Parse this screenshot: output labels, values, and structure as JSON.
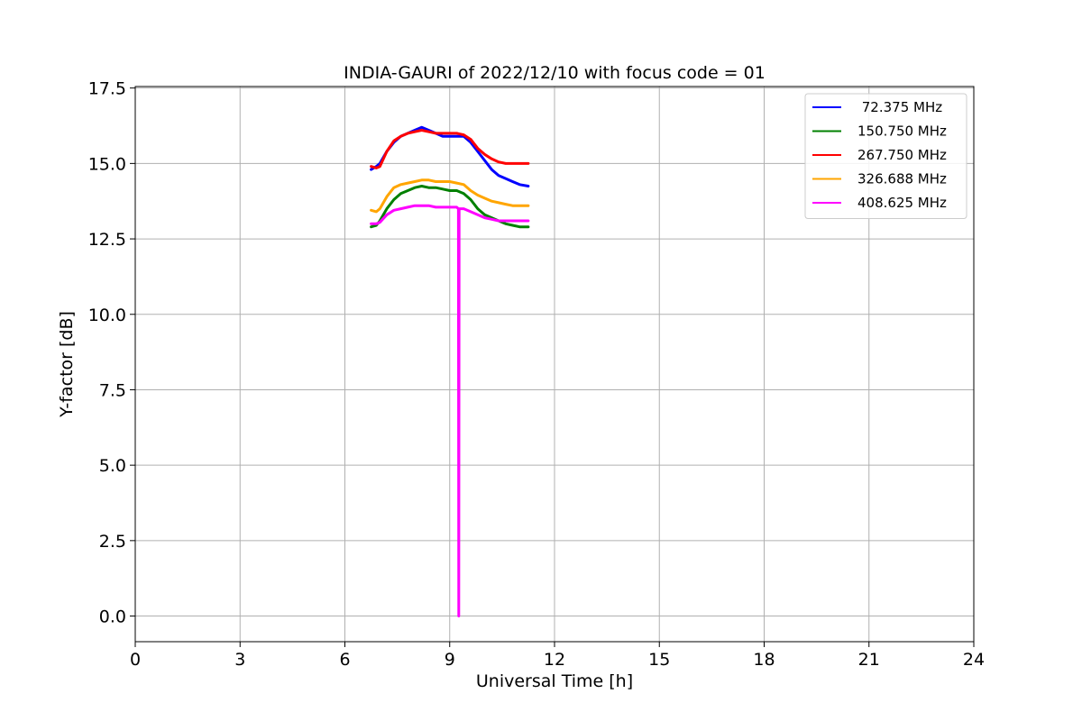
{
  "chart_data": {
    "type": "line",
    "title": "INDIA-GAURI of 2022/12/10 with focus code = 01",
    "xlabel": "Universal Time [h]",
    "ylabel": "Y-factor [dB]",
    "xlim": [
      0,
      24
    ],
    "ylim": [
      -0.85,
      17.55
    ],
    "xticks": [
      0,
      3,
      6,
      9,
      12,
      15,
      18,
      21,
      24
    ],
    "xtick_labels": [
      "0",
      "3",
      "6",
      "9",
      "12",
      "15",
      "18",
      "21",
      "24"
    ],
    "yticks": [
      0.0,
      2.5,
      5.0,
      7.5,
      10.0,
      12.5,
      15.0,
      17.5
    ],
    "ytick_labels": [
      "0.0",
      "2.5",
      "5.0",
      "7.5",
      "10.0",
      "12.5",
      "15.0",
      "17.5"
    ],
    "grid": true,
    "legend_position": "top-right",
    "series": [
      {
        "name": " 72.375 MHz",
        "color": "#0000ff",
        "x": [
          6.75,
          6.9,
          7.0,
          7.2,
          7.4,
          7.6,
          7.8,
          8.0,
          8.2,
          8.4,
          8.6,
          8.8,
          9.0,
          9.2,
          9.4,
          9.6,
          9.8,
          10.0,
          10.2,
          10.4,
          10.6,
          10.8,
          11.0,
          11.25
        ],
        "y": [
          14.8,
          14.9,
          15.0,
          15.4,
          15.7,
          15.9,
          16.0,
          16.1,
          16.2,
          16.1,
          16.0,
          15.9,
          15.9,
          15.9,
          15.9,
          15.7,
          15.4,
          15.1,
          14.8,
          14.6,
          14.5,
          14.4,
          14.3,
          14.25
        ]
      },
      {
        "name": "150.750 MHz",
        "color": "#008000",
        "x": [
          6.75,
          6.9,
          7.0,
          7.2,
          7.4,
          7.6,
          7.8,
          8.0,
          8.2,
          8.4,
          8.6,
          8.8,
          9.0,
          9.2,
          9.4,
          9.6,
          9.8,
          10.0,
          10.2,
          10.4,
          10.6,
          10.8,
          11.0,
          11.25
        ],
        "y": [
          12.9,
          12.95,
          13.1,
          13.5,
          13.8,
          14.0,
          14.1,
          14.2,
          14.25,
          14.2,
          14.2,
          14.15,
          14.1,
          14.1,
          14.0,
          13.8,
          13.5,
          13.3,
          13.2,
          13.1,
          13.0,
          12.95,
          12.9,
          12.9
        ]
      },
      {
        "name": "267.750 MHz",
        "color": "#ff0000",
        "x": [
          6.75,
          6.9,
          7.0,
          7.2,
          7.4,
          7.6,
          7.8,
          8.0,
          8.2,
          8.4,
          8.6,
          8.8,
          9.0,
          9.2,
          9.4,
          9.6,
          9.8,
          10.0,
          10.2,
          10.4,
          10.6,
          10.8,
          11.0,
          11.25
        ],
        "y": [
          14.9,
          14.85,
          14.9,
          15.4,
          15.75,
          15.9,
          16.0,
          16.05,
          16.1,
          16.05,
          16.0,
          16.0,
          16.0,
          16.0,
          15.95,
          15.8,
          15.5,
          15.3,
          15.15,
          15.05,
          15.0,
          15.0,
          15.0,
          15.0
        ]
      },
      {
        "name": "326.688 MHz",
        "color": "#ffa500",
        "x": [
          6.75,
          6.9,
          7.0,
          7.2,
          7.4,
          7.6,
          7.8,
          8.0,
          8.2,
          8.4,
          8.6,
          8.8,
          9.0,
          9.2,
          9.4,
          9.6,
          9.8,
          10.0,
          10.2,
          10.4,
          10.6,
          10.8,
          11.0,
          11.25
        ],
        "y": [
          13.45,
          13.4,
          13.5,
          13.9,
          14.2,
          14.3,
          14.35,
          14.4,
          14.45,
          14.45,
          14.4,
          14.4,
          14.4,
          14.35,
          14.3,
          14.1,
          13.95,
          13.85,
          13.75,
          13.7,
          13.65,
          13.6,
          13.6,
          13.6
        ]
      },
      {
        "name": "408.625 MHz",
        "color": "#ff00ff",
        "x": [
          6.75,
          6.9,
          7.0,
          7.2,
          7.4,
          7.6,
          7.8,
          8.0,
          8.2,
          8.4,
          8.6,
          8.8,
          9.0,
          9.2,
          9.25,
          9.26,
          9.27,
          9.4,
          9.6,
          9.8,
          10.0,
          10.2,
          10.4,
          10.6,
          10.8,
          11.0,
          11.25
        ],
        "y": [
          13.0,
          13.0,
          13.05,
          13.3,
          13.45,
          13.5,
          13.55,
          13.6,
          13.6,
          13.6,
          13.55,
          13.55,
          13.55,
          13.55,
          13.5,
          0.0,
          13.5,
          13.5,
          13.4,
          13.3,
          13.2,
          13.15,
          13.1,
          13.1,
          13.1,
          13.1,
          13.1
        ]
      }
    ]
  }
}
